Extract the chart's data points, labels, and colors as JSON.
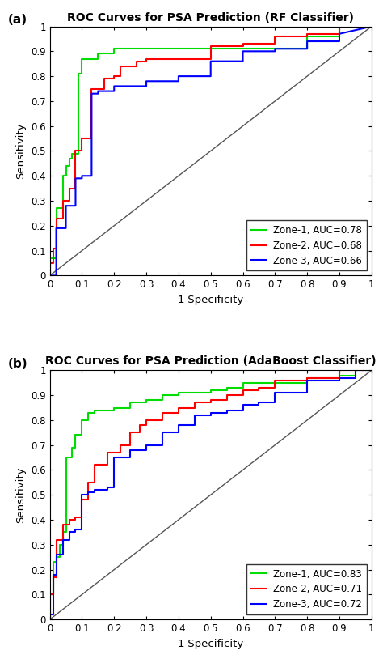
{
  "plot_a": {
    "title": "ROC Curves for PSA Prediction (RF Classifier)",
    "label": "(a)",
    "xlabel": "1-Specificity",
    "ylabel": "Sensitivity",
    "xlim": [
      0,
      1
    ],
    "ylim": [
      0,
      1
    ],
    "xticks": [
      0,
      0.1,
      0.2,
      0.3,
      0.4,
      0.5,
      0.6,
      0.7,
      0.8,
      0.9,
      1
    ],
    "yticks": [
      0,
      0.1,
      0.2,
      0.3,
      0.4,
      0.5,
      0.6,
      0.7,
      0.8,
      0.9,
      1
    ],
    "curves": [
      {
        "color": "#00dd00",
        "label": "Zone-1, AUC=0.78",
        "fpr": [
          0.0,
          0.0,
          0.02,
          0.02,
          0.04,
          0.04,
          0.05,
          0.05,
          0.06,
          0.06,
          0.07,
          0.07,
          0.09,
          0.09,
          0.1,
          0.1,
          0.15,
          0.15,
          0.2,
          0.2,
          0.5,
          0.5,
          0.6,
          0.6,
          0.8,
          0.8,
          0.9,
          0.9,
          1.0
        ],
        "tpr": [
          0.0,
          0.07,
          0.07,
          0.27,
          0.27,
          0.4,
          0.4,
          0.44,
          0.44,
          0.47,
          0.47,
          0.49,
          0.49,
          0.81,
          0.81,
          0.87,
          0.87,
          0.89,
          0.89,
          0.91,
          0.91,
          0.91,
          0.91,
          0.91,
          0.91,
          0.96,
          0.96,
          1.0,
          1.0
        ]
      },
      {
        "color": "#ff0000",
        "label": "Zone-2, AUC=0.68",
        "fpr": [
          0.0,
          0.0,
          0.01,
          0.01,
          0.02,
          0.02,
          0.04,
          0.04,
          0.06,
          0.06,
          0.08,
          0.08,
          0.1,
          0.1,
          0.13,
          0.13,
          0.17,
          0.17,
          0.2,
          0.2,
          0.22,
          0.22,
          0.27,
          0.27,
          0.3,
          0.3,
          0.5,
          0.5,
          0.6,
          0.6,
          0.7,
          0.7,
          0.8,
          0.8,
          0.9,
          0.9,
          1.0
        ],
        "tpr": [
          0.0,
          0.05,
          0.05,
          0.11,
          0.11,
          0.23,
          0.23,
          0.3,
          0.3,
          0.35,
          0.35,
          0.5,
          0.5,
          0.55,
          0.55,
          0.75,
          0.75,
          0.79,
          0.79,
          0.8,
          0.8,
          0.84,
          0.84,
          0.86,
          0.86,
          0.87,
          0.87,
          0.92,
          0.92,
          0.93,
          0.93,
          0.96,
          0.96,
          0.97,
          0.97,
          1.0,
          1.0
        ]
      },
      {
        "color": "#0000ff",
        "label": "Zone-3, AUC=0.66",
        "fpr": [
          0.0,
          0.0,
          0.02,
          0.02,
          0.05,
          0.05,
          0.08,
          0.08,
          0.1,
          0.1,
          0.13,
          0.13,
          0.15,
          0.15,
          0.2,
          0.2,
          0.3,
          0.3,
          0.4,
          0.4,
          0.5,
          0.5,
          0.6,
          0.6,
          0.7,
          0.7,
          0.8,
          0.8,
          0.9,
          0.9,
          1.0
        ],
        "tpr": [
          0.0,
          0.0,
          0.0,
          0.19,
          0.19,
          0.28,
          0.28,
          0.39,
          0.39,
          0.4,
          0.4,
          0.73,
          0.73,
          0.74,
          0.74,
          0.76,
          0.76,
          0.78,
          0.78,
          0.8,
          0.8,
          0.86,
          0.86,
          0.9,
          0.9,
          0.91,
          0.91,
          0.94,
          0.94,
          0.97,
          1.0
        ]
      }
    ]
  },
  "plot_b": {
    "title": "ROC Curves for PSA Prediction (AdaBoost Classifier)",
    "label": "(b)",
    "xlabel": "1-Specificity",
    "ylabel": "Sensitivity",
    "xlim": [
      0,
      1
    ],
    "ylim": [
      0,
      1
    ],
    "xticks": [
      0,
      0.1,
      0.2,
      0.3,
      0.4,
      0.5,
      0.6,
      0.7,
      0.8,
      0.9,
      1
    ],
    "yticks": [
      0,
      0.1,
      0.2,
      0.3,
      0.4,
      0.5,
      0.6,
      0.7,
      0.8,
      0.9,
      1
    ],
    "curves": [
      {
        "color": "#00dd00",
        "label": "Zone-1, AUC=0.83",
        "fpr": [
          0.0,
          0.0,
          0.01,
          0.01,
          0.02,
          0.02,
          0.03,
          0.03,
          0.04,
          0.04,
          0.05,
          0.05,
          0.07,
          0.07,
          0.08,
          0.08,
          0.1,
          0.1,
          0.12,
          0.12,
          0.14,
          0.14,
          0.2,
          0.2,
          0.25,
          0.25,
          0.3,
          0.3,
          0.35,
          0.35,
          0.4,
          0.4,
          0.5,
          0.5,
          0.55,
          0.55,
          0.6,
          0.6,
          0.8,
          0.8,
          0.9,
          0.9,
          0.95,
          0.95,
          1.0
        ],
        "tpr": [
          0.0,
          0.1,
          0.1,
          0.23,
          0.23,
          0.25,
          0.25,
          0.3,
          0.3,
          0.35,
          0.35,
          0.65,
          0.65,
          0.69,
          0.69,
          0.74,
          0.74,
          0.8,
          0.8,
          0.83,
          0.83,
          0.84,
          0.84,
          0.85,
          0.85,
          0.87,
          0.87,
          0.88,
          0.88,
          0.9,
          0.9,
          0.91,
          0.91,
          0.92,
          0.92,
          0.93,
          0.93,
          0.95,
          0.95,
          0.97,
          0.97,
          0.98,
          0.98,
          1.0,
          1.0
        ]
      },
      {
        "color": "#ff0000",
        "label": "Zone-2, AUC=0.71",
        "fpr": [
          0.0,
          0.0,
          0.01,
          0.01,
          0.02,
          0.02,
          0.04,
          0.04,
          0.06,
          0.06,
          0.08,
          0.08,
          0.1,
          0.1,
          0.12,
          0.12,
          0.14,
          0.14,
          0.18,
          0.18,
          0.22,
          0.22,
          0.25,
          0.25,
          0.28,
          0.28,
          0.3,
          0.3,
          0.35,
          0.35,
          0.4,
          0.4,
          0.45,
          0.45,
          0.5,
          0.5,
          0.55,
          0.55,
          0.6,
          0.6,
          0.65,
          0.65,
          0.7,
          0.7,
          0.8,
          0.8,
          0.9,
          0.9,
          1.0
        ],
        "tpr": [
          0.0,
          0.1,
          0.1,
          0.17,
          0.17,
          0.32,
          0.32,
          0.38,
          0.38,
          0.4,
          0.4,
          0.41,
          0.41,
          0.48,
          0.48,
          0.55,
          0.55,
          0.62,
          0.62,
          0.67,
          0.67,
          0.7,
          0.7,
          0.75,
          0.75,
          0.78,
          0.78,
          0.8,
          0.8,
          0.83,
          0.83,
          0.85,
          0.85,
          0.87,
          0.87,
          0.88,
          0.88,
          0.9,
          0.9,
          0.92,
          0.92,
          0.93,
          0.93,
          0.96,
          0.96,
          0.97,
          0.97,
          1.0,
          1.0
        ]
      },
      {
        "color": "#0000ff",
        "label": "Zone-3, AUC=0.72",
        "fpr": [
          0.0,
          0.0,
          0.01,
          0.01,
          0.02,
          0.02,
          0.04,
          0.04,
          0.06,
          0.06,
          0.08,
          0.08,
          0.1,
          0.1,
          0.12,
          0.12,
          0.14,
          0.14,
          0.18,
          0.18,
          0.2,
          0.2,
          0.25,
          0.25,
          0.3,
          0.3,
          0.35,
          0.35,
          0.4,
          0.4,
          0.45,
          0.45,
          0.5,
          0.5,
          0.55,
          0.55,
          0.6,
          0.6,
          0.65,
          0.65,
          0.7,
          0.7,
          0.8,
          0.8,
          0.9,
          0.9,
          0.95,
          0.95,
          1.0
        ],
        "tpr": [
          0.0,
          0.02,
          0.02,
          0.18,
          0.18,
          0.26,
          0.26,
          0.32,
          0.32,
          0.35,
          0.35,
          0.36,
          0.36,
          0.5,
          0.5,
          0.51,
          0.51,
          0.52,
          0.52,
          0.53,
          0.53,
          0.65,
          0.65,
          0.68,
          0.68,
          0.7,
          0.7,
          0.75,
          0.75,
          0.78,
          0.78,
          0.82,
          0.82,
          0.83,
          0.83,
          0.84,
          0.84,
          0.86,
          0.86,
          0.87,
          0.87,
          0.91,
          0.91,
          0.96,
          0.96,
          0.97,
          0.97,
          1.0,
          1.0
        ]
      }
    ]
  },
  "diagonal": {
    "fpr": [
      0,
      1
    ],
    "tpr": [
      0,
      1
    ],
    "color": "#555555",
    "linewidth": 1.0
  },
  "line_width": 1.5,
  "legend_loc": "lower right",
  "legend_fontsize": 8.5,
  "title_fontsize": 10,
  "axis_label_fontsize": 9.5,
  "tick_fontsize": 8.5,
  "background_color": "#ffffff"
}
